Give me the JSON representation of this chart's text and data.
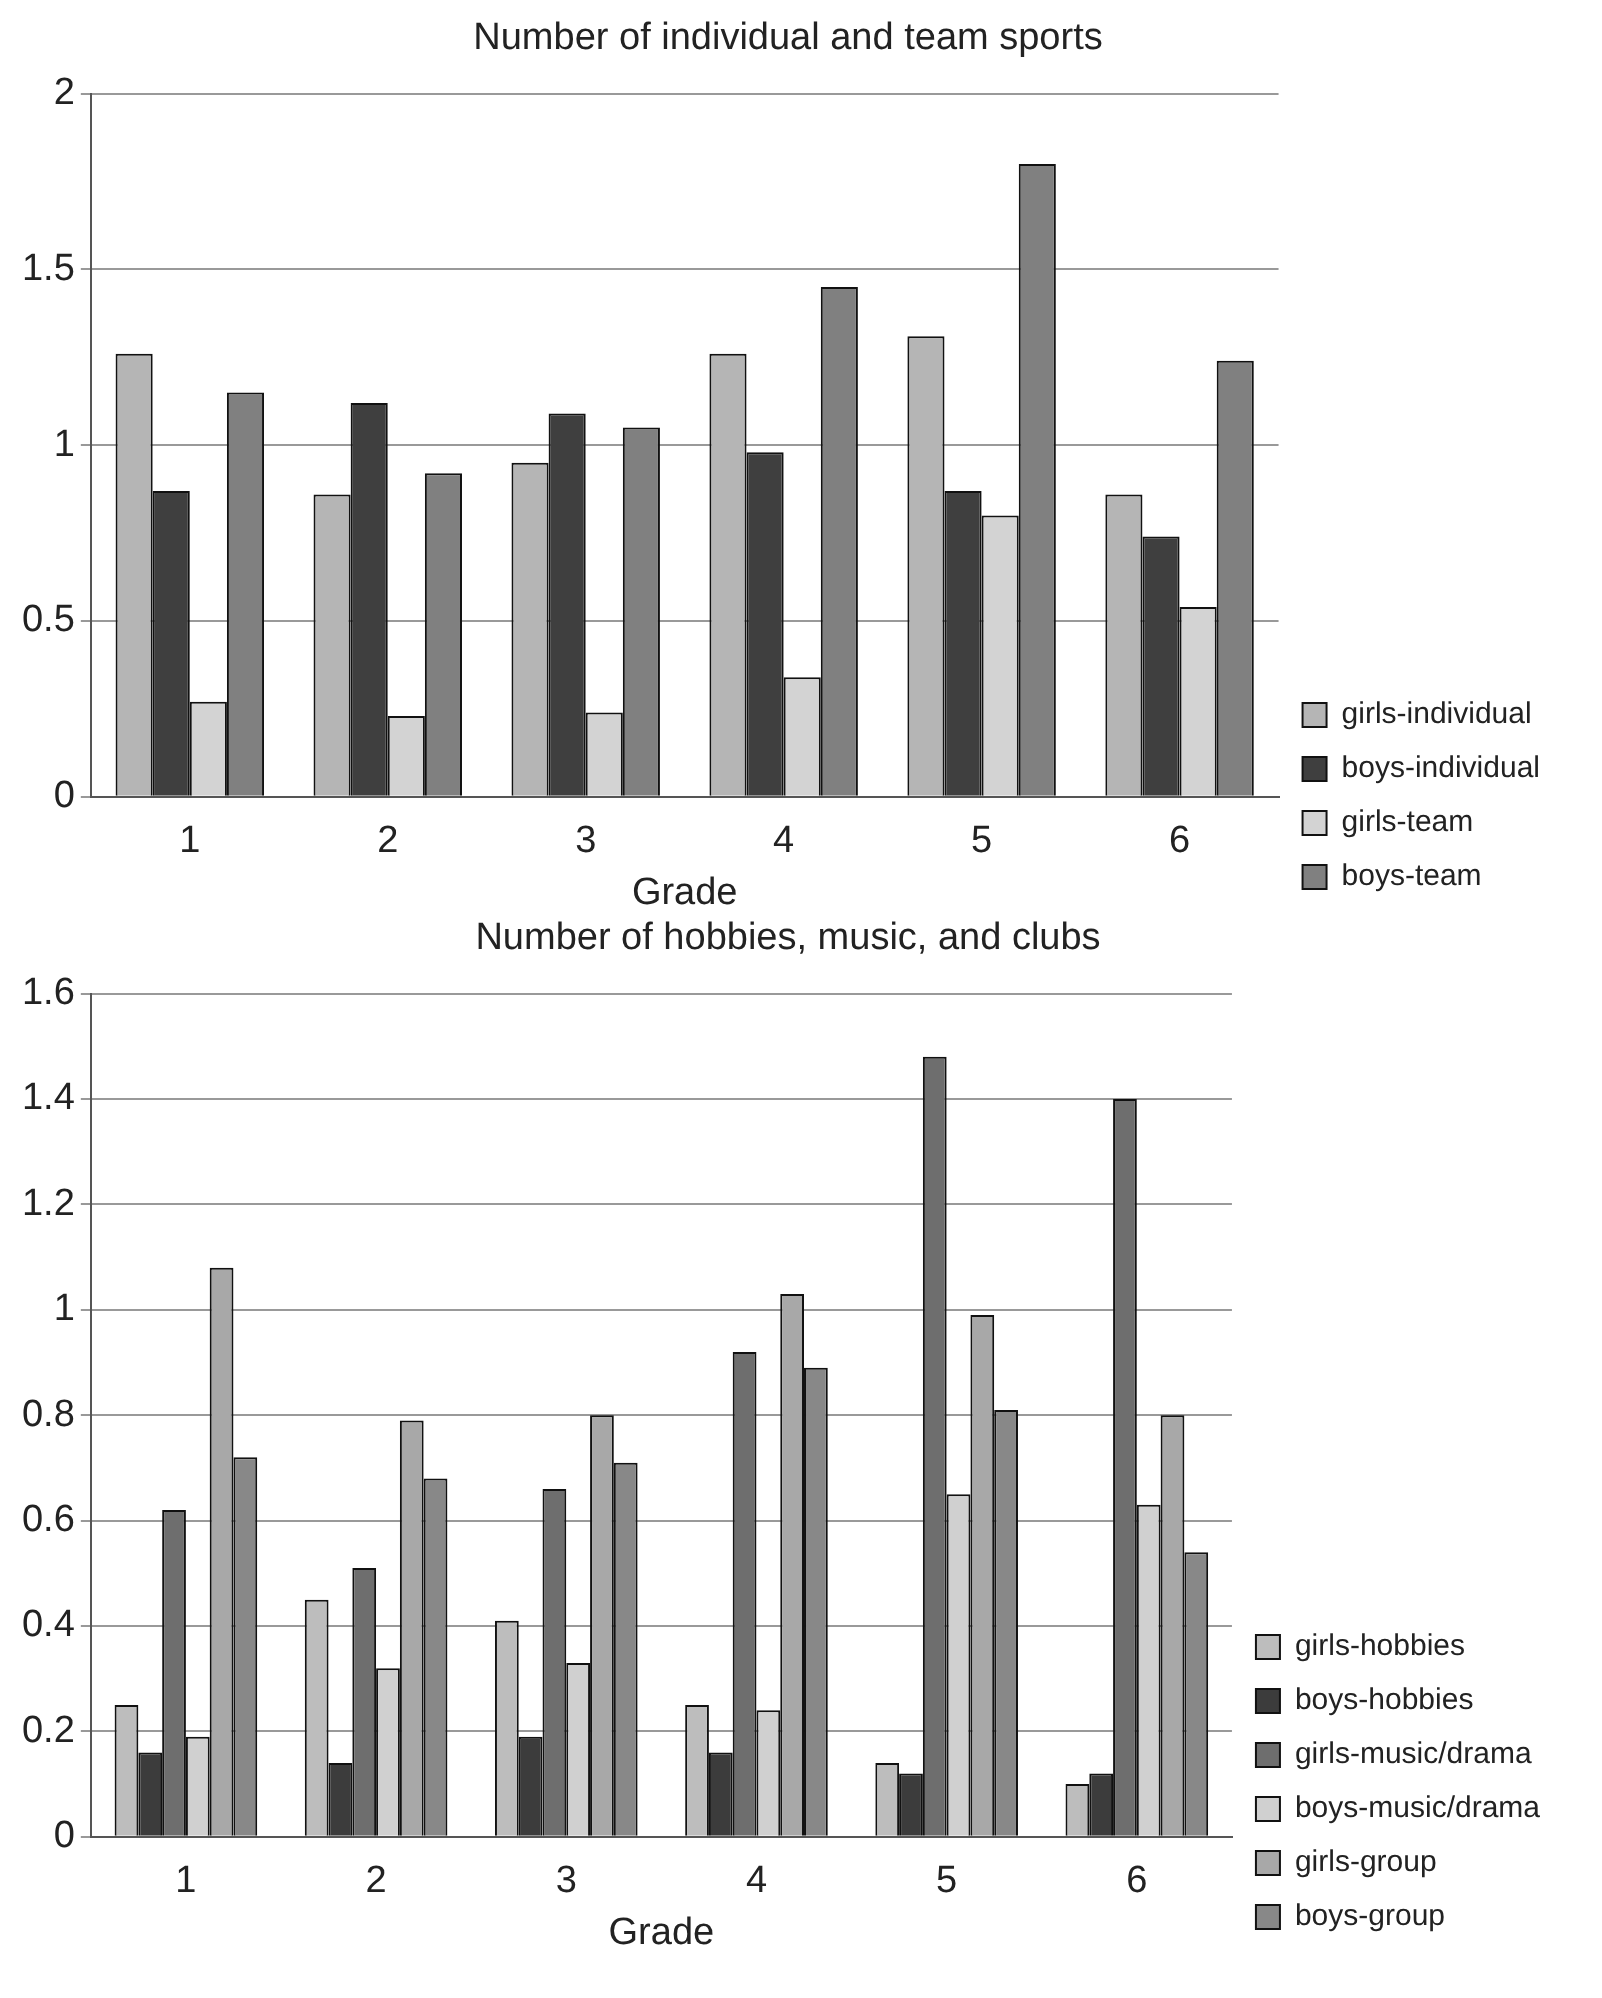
{
  "chart_data": [
    {
      "type": "bar",
      "title": "Number of individual and team sports",
      "xlabel": "Grade",
      "categories": [
        "1",
        "2",
        "3",
        "4",
        "5",
        "6"
      ],
      "series": [
        {
          "name": "girls-individual",
          "color": "#b5b5b5",
          "values": [
            1.26,
            0.86,
            0.95,
            1.26,
            1.31,
            0.86
          ]
        },
        {
          "name": "boys-individual",
          "color": "#3f3f3f",
          "values": [
            0.87,
            1.12,
            1.09,
            0.98,
            0.87,
            0.74
          ]
        },
        {
          "name": "girls-team",
          "color": "#d3d3d3",
          "values": [
            0.27,
            0.23,
            0.24,
            0.34,
            0.8,
            0.54
          ]
        },
        {
          "name": "boys-team",
          "color": "#808080",
          "values": [
            1.15,
            0.92,
            1.05,
            1.45,
            1.8,
            1.24
          ]
        }
      ],
      "ylim": [
        0,
        2
      ],
      "yticks": [
        0,
        0.5,
        1,
        1.5,
        2
      ],
      "grid": "y",
      "legend": "right"
    },
    {
      "type": "bar",
      "title": "Number of hobbies, music, and clubs",
      "xlabel": "Grade",
      "categories": [
        "1",
        "2",
        "3",
        "4",
        "5",
        "6"
      ],
      "series": [
        {
          "name": "girls-hobbies",
          "color": "#bdbdbd",
          "values": [
            0.25,
            0.45,
            0.41,
            0.25,
            0.14,
            0.1
          ]
        },
        {
          "name": "boys-hobbies",
          "color": "#3c3c3c",
          "values": [
            0.16,
            0.14,
            0.19,
            0.16,
            0.12,
            0.12
          ]
        },
        {
          "name": "girls-music/drama",
          "color": "#6e6e6e",
          "values": [
            0.62,
            0.51,
            0.66,
            0.92,
            1.48,
            1.4
          ]
        },
        {
          "name": "boys-music/drama",
          "color": "#d0d0d0",
          "values": [
            0.19,
            0.32,
            0.33,
            0.24,
            0.65,
            0.63
          ]
        },
        {
          "name": "girls-group",
          "color": "#a8a8a8",
          "values": [
            1.08,
            0.79,
            0.8,
            1.03,
            0.99,
            0.8
          ]
        },
        {
          "name": "boys-group",
          "color": "#888888",
          "values": [
            0.72,
            0.68,
            0.71,
            0.89,
            0.81,
            0.54
          ]
        }
      ],
      "ylim": [
        0,
        1.6
      ],
      "yticks": [
        0,
        0.2,
        0.4,
        0.6,
        0.8,
        1,
        1.2,
        1.4,
        1.6
      ],
      "grid": "y",
      "legend": "right"
    }
  ]
}
